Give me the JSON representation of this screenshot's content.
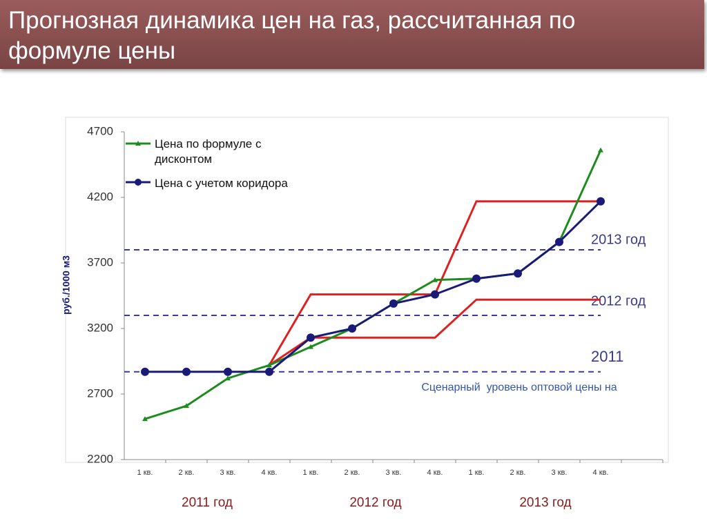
{
  "title": "Прогнозная динамика цен на газ, рассчитанная по формуле цены",
  "chart_data": {
    "type": "line",
    "y_label": "руб./1000 м3",
    "categories": [
      "1 кв.",
      "2 кв.",
      "3 кв.",
      "4 кв.",
      "1 кв.",
      "2 кв.",
      "3 кв.",
      "4 кв.",
      "1 кв.",
      "2 кв.",
      "3 кв.",
      "4 кв.",
      null
    ],
    "groups": [
      "2011 год",
      "2012 год",
      "2013 год"
    ],
    "series": [
      {
        "color": "#e02020",
        "values": [
          null,
          null,
          null,
          2920,
          3460,
          3460,
          3460,
          3460,
          4170,
          4170,
          4170,
          4170,
          null
        ]
      },
      {
        "color": "#e02020",
        "values": [
          null,
          null,
          null,
          2920,
          3130,
          3130,
          3130,
          3130,
          3420,
          3420,
          3420,
          3420,
          null
        ]
      },
      {
        "name": "Цена по формуле с дисконтом",
        "color": "#1c8c1c",
        "marker": "triangle",
        "values": [
          2510,
          2610,
          2820,
          2920,
          3060,
          3200,
          3390,
          3570,
          3580,
          3620,
          3860,
          4560,
          null
        ]
      },
      {
        "name": "Цена с учетом коридора",
        "color": "#1a1a78",
        "marker": "circle",
        "values": [
          2870,
          2870,
          2870,
          2870,
          3130,
          3200,
          3390,
          3460,
          3580,
          3620,
          3860,
          4170,
          null
        ]
      }
    ],
    "reference_lines": [
      {
        "value": 2870,
        "color": "#3838a8"
      },
      {
        "value": 3300,
        "color": "#3838a8"
      },
      {
        "value": 3800,
        "color": "#3838a8"
      }
    ],
    "annotations": [
      "2013 год",
      "2012 год",
      "2011",
      "Сценарный  уровень оптовой цены на"
    ],
    "ylim": [
      2200,
      4700
    ],
    "yticks": [
      2200,
      2700,
      3200,
      3700,
      4200,
      4700
    ],
    "grid": false
  }
}
